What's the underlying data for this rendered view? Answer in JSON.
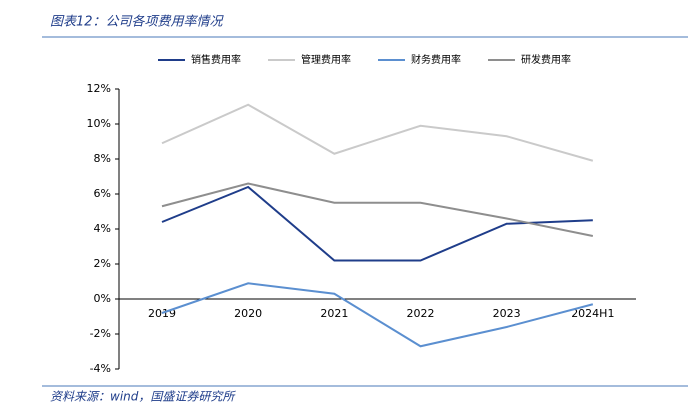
{
  "chart_data": {
    "type": "line",
    "title": "图表12：公司各项费用率情况",
    "source": "资料来源：wind，国盛证券研究所",
    "categories": [
      "2019",
      "2020",
      "2021",
      "2022",
      "2023",
      "2024H1"
    ],
    "series": [
      {
        "name": "销售费用率",
        "color": "#1f3d8a",
        "values": [
          4.4,
          6.4,
          2.2,
          2.2,
          4.3,
          4.5
        ]
      },
      {
        "name": "管理费用率",
        "color": "#cacaca",
        "values": [
          8.9,
          11.1,
          8.3,
          9.9,
          9.3,
          7.9
        ]
      },
      {
        "name": "财务费用率",
        "color": "#5b8fd0",
        "values": [
          -0.8,
          0.9,
          0.3,
          -2.7,
          -1.6,
          -0.3
        ]
      },
      {
        "name": "研发费用率",
        "color": "#8e8e8e",
        "values": [
          5.3,
          6.6,
          5.5,
          5.5,
          4.6,
          3.6
        ]
      }
    ],
    "ylim": [
      -4,
      12
    ],
    "yticks": [
      {
        "value": -4,
        "label": "-4%"
      },
      {
        "value": -2,
        "label": "-2%"
      },
      {
        "value": 0,
        "label": "0%"
      },
      {
        "value": 2,
        "label": "2%"
      },
      {
        "value": 4,
        "label": "4%"
      },
      {
        "value": 6,
        "label": "6%"
      },
      {
        "value": 8,
        "label": "8%"
      },
      {
        "value": 10,
        "label": "10%"
      },
      {
        "value": 12,
        "label": "12%"
      }
    ],
    "legend": "top"
  }
}
